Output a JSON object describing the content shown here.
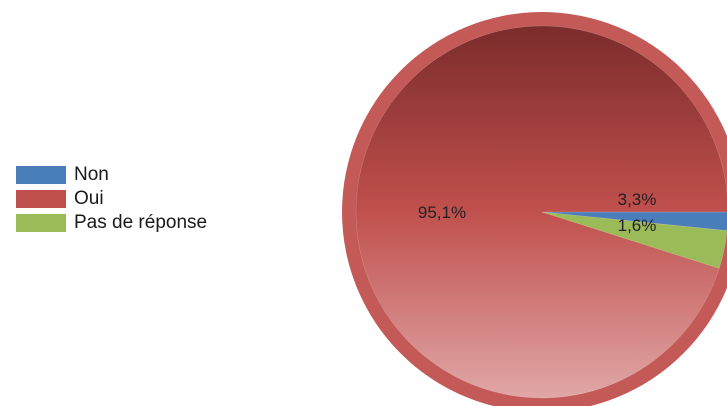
{
  "chart_data": {
    "type": "pie",
    "title": "",
    "legend_position": "left",
    "slices": [
      {
        "name": "Non",
        "value": 1.6,
        "label": "1,6%",
        "color": "#4a7ebb"
      },
      {
        "name": "Oui",
        "value": 95.1,
        "label": "95,1%",
        "color": "#c0504d"
      },
      {
        "name": "Pas de réponse",
        "value": 3.3,
        "label": "3,3%",
        "color": "#9bbb59"
      }
    ]
  }
}
